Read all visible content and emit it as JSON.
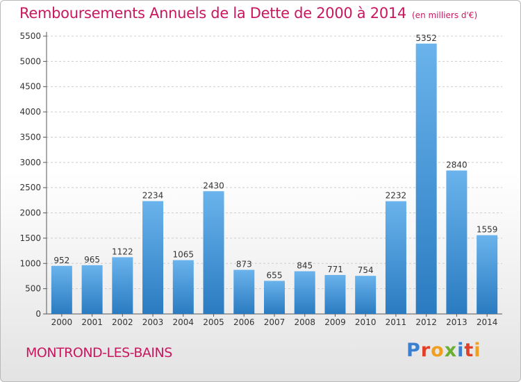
{
  "header": {
    "title": "Remboursements Annuels de la Dette de 2000 à 2014",
    "unit": "(en milliers d'€)"
  },
  "footer": {
    "city": "MONTROND-LES-BAINS",
    "logo": {
      "letters": [
        "P",
        "r",
        "o",
        "x",
        "i",
        "t",
        "i"
      ],
      "colors": [
        "#3a7fd0",
        "#e0402a",
        "#f0a020",
        "#6ab030",
        "#3a7fd0",
        "#e0402a",
        "#f0a020"
      ]
    }
  },
  "colors": {
    "bar_top": "#6ab3ec",
    "bar_bottom": "#2a7bc1",
    "accent": "#c8175f",
    "grid": "#cccccc"
  },
  "chart_data": {
    "type": "bar",
    "title": "Remboursements Annuels de la Dette de 2000 à 2014",
    "categories": [
      "2000",
      "2001",
      "2002",
      "2003",
      "2004",
      "2005",
      "2006",
      "2007",
      "2008",
      "2009",
      "2010",
      "2011",
      "2012",
      "2013",
      "2014"
    ],
    "values": [
      952,
      965,
      1122,
      2234,
      1065,
      2430,
      873,
      655,
      845,
      771,
      754,
      2232,
      5352,
      2840,
      1559
    ],
    "yticks": [
      0,
      500,
      1000,
      1500,
      2000,
      2500,
      3000,
      3500,
      4000,
      4500,
      5000,
      5500
    ],
    "ylim": [
      0,
      5500
    ],
    "grid": true,
    "xlabel": "",
    "ylabel": ""
  }
}
